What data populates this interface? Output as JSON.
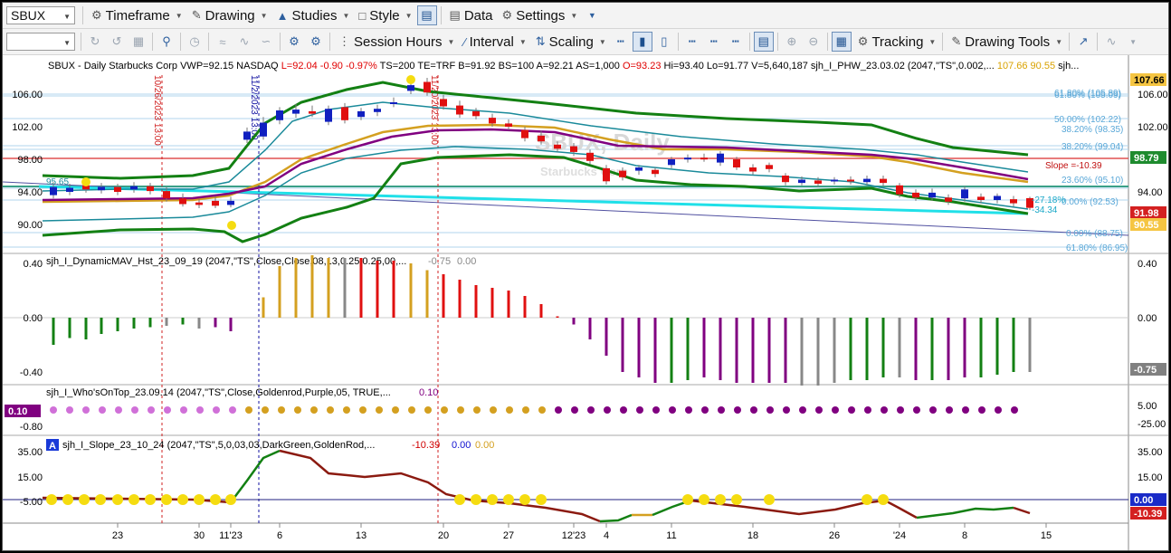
{
  "toolbar1": {
    "symbol_value": "SBUX",
    "menus": [
      {
        "label": "Timeframe",
        "icon": "timeframe-icon"
      },
      {
        "label": "Drawing",
        "icon": "drawing-icon"
      },
      {
        "label": "Studies",
        "icon": "studies-icon"
      },
      {
        "label": "Style",
        "icon": "style-icon"
      },
      {
        "label": "Data",
        "icon": "data-icon"
      },
      {
        "label": "Settings",
        "icon": "settings-icon"
      }
    ]
  },
  "toolbar2": {
    "combo_value": "",
    "menus": [
      {
        "label": "Session Hours",
        "icon": "session-hours-icon"
      },
      {
        "label": "Interval",
        "icon": "interval-icon"
      },
      {
        "label": "Scaling",
        "icon": "scaling-icon"
      },
      {
        "label": "Tracking",
        "icon": "tracking-icon"
      },
      {
        "label": "Drawing Tools",
        "icon": "drawing-tools-icon"
      }
    ]
  },
  "price_pane": {
    "header": [
      {
        "text": "SBUX - Daily  Starbucks Corp  VWP=92.15  NASDAQ",
        "color": "#000000"
      },
      {
        "text": "L=92.04  -0.90  -0.97%",
        "color": "#e00000"
      },
      {
        "text": "TS=200  TE=TRF  B=91.92  BS=100  A=92.21  AS=1,000",
        "color": "#000000"
      },
      {
        "text": "O=93.23",
        "color": "#e00000"
      },
      {
        "text": "Hi=93.40  Lo=91.77  V=5,640,187  sjh_I_PHW_23.03.02 (2047,\"TS\",0.002,...",
        "color": "#000000"
      },
      {
        "text": "107.66",
        "color": "#d9a200"
      },
      {
        "text": "90.55",
        "color": "#d9a200"
      },
      {
        "text": "sjh...",
        "color": "#000000"
      }
    ],
    "axis_ticks": [
      "106.00",
      "102.00",
      "98.00",
      "94.00",
      "90.00"
    ],
    "fib_labels": [
      "61.80% (105.89)",
      "61.80% (105.09)",
      "50.00% (102.22)",
      "38.20% (99.04)",
      "38.20% (98.35)",
      "23.60% (95.10)",
      "0.00% (92.53)",
      "0.00% (88.75)",
      "61.80% (86.95)"
    ],
    "slope_label": "Slope =-10.39",
    "pct_labels": [
      "-27.18%",
      "-34.34"
    ],
    "left_marker": "95.65",
    "event_labels": [
      "10/26/2023 13:00",
      "11/2/2023 13:00",
      "11/20/2023 13:00"
    ],
    "watermark": "SBUX, Daily",
    "watermark_sub": "Starbucks Corp",
    "right_tags": [
      {
        "text": "107.66",
        "bg": "#f5c542",
        "fg": "#000000"
      },
      {
        "text": "98.79",
        "bg": "#1e8b2e",
        "fg": "#ffffff"
      },
      {
        "text": "91.98",
        "bg": "#d42020",
        "fg": "#ffffff"
      },
      {
        "text": "90.55",
        "bg": "#f5c542",
        "fg": "#ffffff"
      }
    ]
  },
  "mav_pane": {
    "title": "sjh_I_DynamicMAV_Hst_23_09_19 (2047,\"TS\",Close,Close,08,13,0.25,0.25,00,...",
    "value1": "-0.75",
    "value2": "0.00",
    "axis_ticks": [
      "0.40",
      "0.00",
      "-0.40",
      "-0.80"
    ],
    "right_tag": "-0.75"
  },
  "wot_pane": {
    "title": "sjh_I_Who'sOnTop_23.09.14 (2047,\"TS\",Close,Goldenrod,Purple,05,  TRUE,...",
    "value": "0.10",
    "axis_ticks": [
      "5.00",
      "-25.00"
    ],
    "left_tag": "0.10"
  },
  "slope_pane": {
    "badge": "A",
    "title": "sjh_I_Slope_23_10_24 (2047,\"TS\",5,0,03,03,DarkGreen,GoldenRod,...",
    "value1": "-10.39",
    "value2": "0.00",
    "value3": "0.00",
    "axis_ticks": [
      "35.00",
      "15.00",
      "-5.00"
    ],
    "right_tags": [
      {
        "text": "0.00",
        "bg": "#1a2bc8",
        "fg": "#ffffff"
      },
      {
        "text": "-10.39",
        "bg": "#d42020",
        "fg": "#ffffff"
      }
    ]
  },
  "time_axis": [
    "23",
    "30",
    "11'23",
    "6",
    "13",
    "20",
    "27",
    "12'23",
    "4",
    "11",
    "18",
    "26",
    "'24",
    "8",
    "15"
  ],
  "colors": {
    "up_candle": "#1020c0",
    "down_candle": "#e01010",
    "dark_green": "#138013",
    "goldenrod": "#d4a020",
    "purple": "#800080",
    "teal": "#1a8a9a",
    "cyan": "#20e0e8",
    "gray": "#888888",
    "dark_red": "#8b1a10",
    "yellow": "#f5dc10"
  }
}
